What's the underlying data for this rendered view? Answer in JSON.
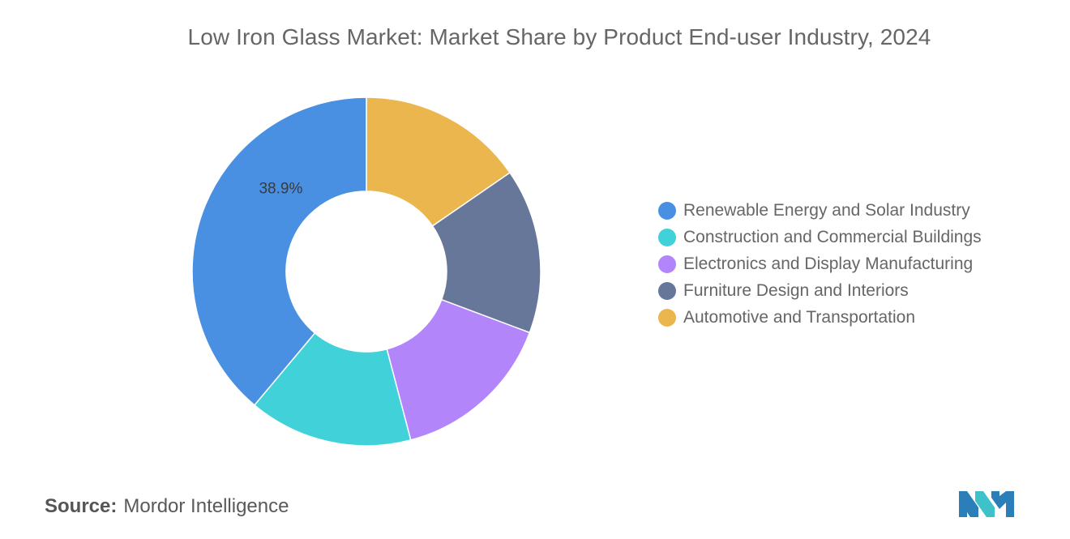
{
  "chart_data": {
    "type": "pie",
    "donut": true,
    "title": "Low Iron Glass Market: Market Share by Product End-user Industry, 2024",
    "categories": [
      "Automotive and Transportation",
      "Furniture Design and Interiors",
      "Electronics and Display Manufacturing",
      "Construction and Commercial Buildings",
      "Renewable Energy and Solar Industry"
    ],
    "values": [
      15.4,
      15.3,
      15.2,
      15.2,
      38.9
    ],
    "colors": [
      "#ebb64d",
      "#667799",
      "#b285fa",
      "#41d1d9",
      "#4a90e2"
    ],
    "data_labels": [
      {
        "category": "Renewable Energy and Solar Industry",
        "text": "38.9%"
      }
    ],
    "legend_position": "right"
  },
  "legend": {
    "items": [
      {
        "label": "Renewable Energy and Solar Industry",
        "color": "#4a90e2"
      },
      {
        "label": "Construction and Commercial Buildings",
        "color": "#41d1d9"
      },
      {
        "label": "Electronics and Display Manufacturing",
        "color": "#b285fa"
      },
      {
        "label": "Furniture Design and Interiors",
        "color": "#667799"
      },
      {
        "label": "Automotive and Transportation",
        "color": "#ebb64d"
      }
    ]
  },
  "source": {
    "label": "Source:",
    "text": "Mordor Intelligence"
  },
  "logo": {
    "icon": "mordor-intelligence-logo-icon",
    "colors": [
      "#2a7fb8",
      "#3fc1c9"
    ]
  }
}
